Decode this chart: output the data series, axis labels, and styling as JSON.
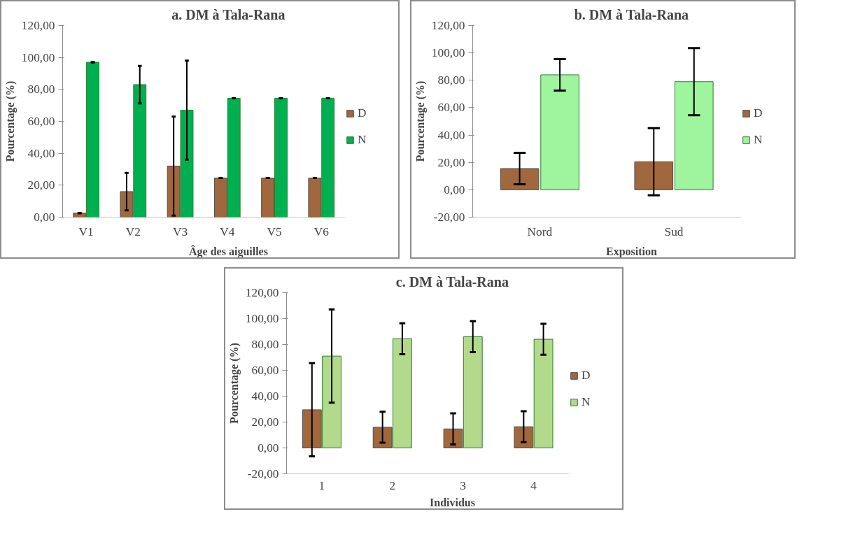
{
  "chart_data": [
    {
      "type": "bar",
      "title": "a. DM à Tala-Rana",
      "xlabel": "Âge des aiguilles",
      "ylabel": "Pourcentage (%)",
      "categories": [
        "V1",
        "V2",
        "V3",
        "V4",
        "V5",
        "V6"
      ],
      "series": [
        {
          "name": "D",
          "color": "#a0683c",
          "values": [
            2.5,
            16,
            32,
            24.5,
            24.5,
            24.5
          ],
          "errors": [
            0,
            11.7,
            31,
            0,
            0,
            0
          ]
        },
        {
          "name": "N",
          "color": "#00b050",
          "values": [
            97,
            83,
            67,
            74.5,
            74.5,
            74.5
          ],
          "errors": [
            0,
            11.7,
            31,
            0,
            0,
            0
          ]
        }
      ],
      "ylim": [
        0,
        120
      ],
      "yticks": [
        {
          "value": 0,
          "label": "0,00"
        },
        {
          "value": 20,
          "label": "20,00"
        },
        {
          "value": 40,
          "label": "40,00"
        },
        {
          "value": 60,
          "label": "60,00"
        },
        {
          "value": 80,
          "label": "80,00"
        },
        {
          "value": 100,
          "label": "100,00"
        },
        {
          "value": 120,
          "label": "120,00"
        }
      ],
      "grid": false,
      "legend": "right"
    },
    {
      "type": "bar",
      "title": "b. DM à Tala-Rana",
      "xlabel": "Exposition",
      "ylabel": "Pourcentage (%)",
      "categories": [
        "Nord",
        "Sud"
      ],
      "series": [
        {
          "name": "D",
          "color": "#a0683c",
          "values": [
            15.5,
            20.5
          ],
          "errors": [
            11.5,
            24.5
          ]
        },
        {
          "name": "N",
          "color": "#9ef59e",
          "values": [
            84,
            79
          ],
          "errors": [
            11.5,
            24.5
          ]
        }
      ],
      "ylim": [
        -20,
        120
      ],
      "yticks": [
        {
          "value": -20,
          "label": "-20,00"
        },
        {
          "value": 0,
          "label": "0,00"
        },
        {
          "value": 20,
          "label": "20,00"
        },
        {
          "value": 40,
          "label": "40,00"
        },
        {
          "value": 60,
          "label": "60,00"
        },
        {
          "value": 80,
          "label": "80,00"
        },
        {
          "value": 100,
          "label": "100,00"
        },
        {
          "value": 120,
          "label": "120,00"
        }
      ],
      "grid": false,
      "legend": "right"
    },
    {
      "type": "bar",
      "title": "c. DM à Tala-Rana",
      "xlabel": "Individus",
      "ylabel": "Pourcentage (%)",
      "categories": [
        "1",
        "2",
        "3",
        "4"
      ],
      "series": [
        {
          "name": "D",
          "color": "#a0683c",
          "values": [
            29.5,
            16,
            14.7,
            16.4
          ],
          "errors": [
            36,
            12,
            12,
            12
          ]
        },
        {
          "name": "N",
          "color": "#b3d98a",
          "values": [
            71,
            84.4,
            86,
            84
          ],
          "errors": [
            36,
            12,
            12,
            12
          ]
        }
      ],
      "ylim": [
        -20,
        120
      ],
      "yticks": [
        {
          "value": -20,
          "label": "-20,00"
        },
        {
          "value": 0,
          "label": "0,00"
        },
        {
          "value": 20,
          "label": "20,00"
        },
        {
          "value": 40,
          "label": "40,00"
        },
        {
          "value": 60,
          "label": "60,00"
        },
        {
          "value": 80,
          "label": "80,00"
        },
        {
          "value": 100,
          "label": "100,00"
        },
        {
          "value": 120,
          "label": "120,00"
        }
      ],
      "grid": false,
      "legend": "right"
    }
  ]
}
